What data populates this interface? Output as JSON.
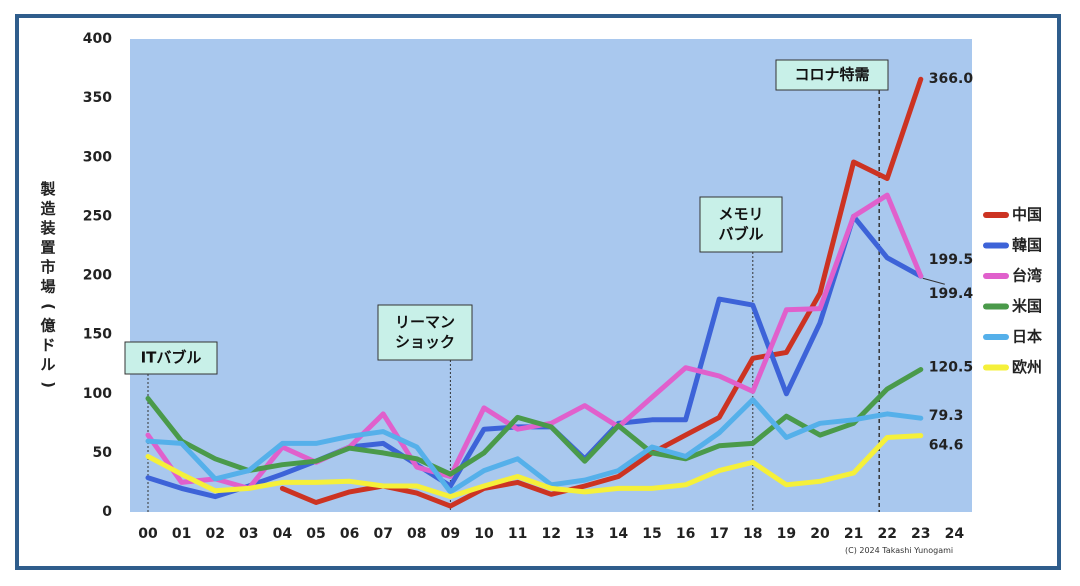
{
  "chart_data": {
    "type": "line",
    "ylabel": "製造装置市場(億ドル)",
    "ylim": [
      0,
      400
    ],
    "yticks": [
      "0",
      "50",
      "100",
      "150",
      "200",
      "250",
      "300",
      "350",
      "400"
    ],
    "categories": [
      "00",
      "01",
      "02",
      "03",
      "04",
      "05",
      "06",
      "07",
      "08",
      "09",
      "10",
      "11",
      "12",
      "13",
      "14",
      "15",
      "16",
      "17",
      "18",
      "19",
      "20",
      "21",
      "22",
      "23",
      "24"
    ],
    "grid": false,
    "legend_position": "right",
    "series": [
      {
        "name": "中国",
        "color": "#cc3322",
        "values": [
          null,
          null,
          null,
          null,
          20,
          8,
          17,
          22,
          16,
          5,
          20,
          25,
          15,
          22,
          30,
          50,
          65,
          80,
          130,
          135,
          185,
          296,
          282,
          366.0,
          null
        ]
      },
      {
        "name": "韓国",
        "color": "#3d63d8",
        "values": [
          29,
          20,
          13,
          22,
          32,
          43,
          55,
          58,
          40,
          22,
          70,
          72,
          72,
          45,
          75,
          78,
          78,
          180,
          175,
          100,
          160,
          250,
          215,
          199.4,
          null
        ]
      },
      {
        "name": "台湾",
        "color": "#e060cc",
        "values": [
          65,
          25,
          28,
          20,
          55,
          42,
          55,
          83,
          38,
          30,
          88,
          70,
          75,
          90,
          72,
          97,
          122,
          115,
          102,
          171,
          172,
          250,
          268,
          199.5,
          null
        ]
      },
      {
        "name": "米国",
        "color": "#4a9a4a",
        "values": [
          96,
          60,
          45,
          35,
          40,
          43,
          54,
          50,
          45,
          32,
          50,
          80,
          72,
          43,
          73,
          50,
          45,
          56,
          58,
          81,
          65,
          75,
          104,
          120.5,
          null
        ]
      },
      {
        "name": "日本",
        "color": "#55b0ea",
        "values": [
          60,
          58,
          28,
          35,
          58,
          58,
          64,
          68,
          55,
          17,
          35,
          45,
          23,
          27,
          35,
          55,
          47,
          67,
          95,
          63,
          75,
          78,
          83,
          79.3,
          null
        ]
      },
      {
        "name": "欧州",
        "color": "#f5f03a",
        "values": [
          47,
          32,
          18,
          20,
          25,
          25,
          26,
          22,
          22,
          13,
          22,
          30,
          20,
          17,
          20,
          20,
          23,
          35,
          42,
          23,
          26,
          33,
          63,
          64.6,
          null
        ]
      }
    ],
    "end_labels": [
      {
        "series": "中国",
        "text": "366.0"
      },
      {
        "series": "台湾",
        "text": "199.5"
      },
      {
        "series": "韓国",
        "text": "199.4"
      },
      {
        "series": "米国",
        "text": "120.5"
      },
      {
        "series": "日本",
        "text": "79.3"
      },
      {
        "series": "欧州",
        "text": "64.6"
      }
    ],
    "annotations": [
      {
        "lines": [
          "ITバブル"
        ],
        "category": "00"
      },
      {
        "lines": [
          "リーマン",
          "ショック"
        ],
        "category": "09"
      },
      {
        "lines": [
          "メモリ",
          "バブル"
        ],
        "category": "18"
      },
      {
        "lines": [
          "コロナ特需"
        ],
        "category": "22"
      }
    ],
    "credit": "(C) 2024 Takashi Yunogami",
    "colors": {
      "plot_bg": "#a9c8ee",
      "frame": "#2f5d8c",
      "annotation_bg": "#c8f0e8"
    }
  }
}
